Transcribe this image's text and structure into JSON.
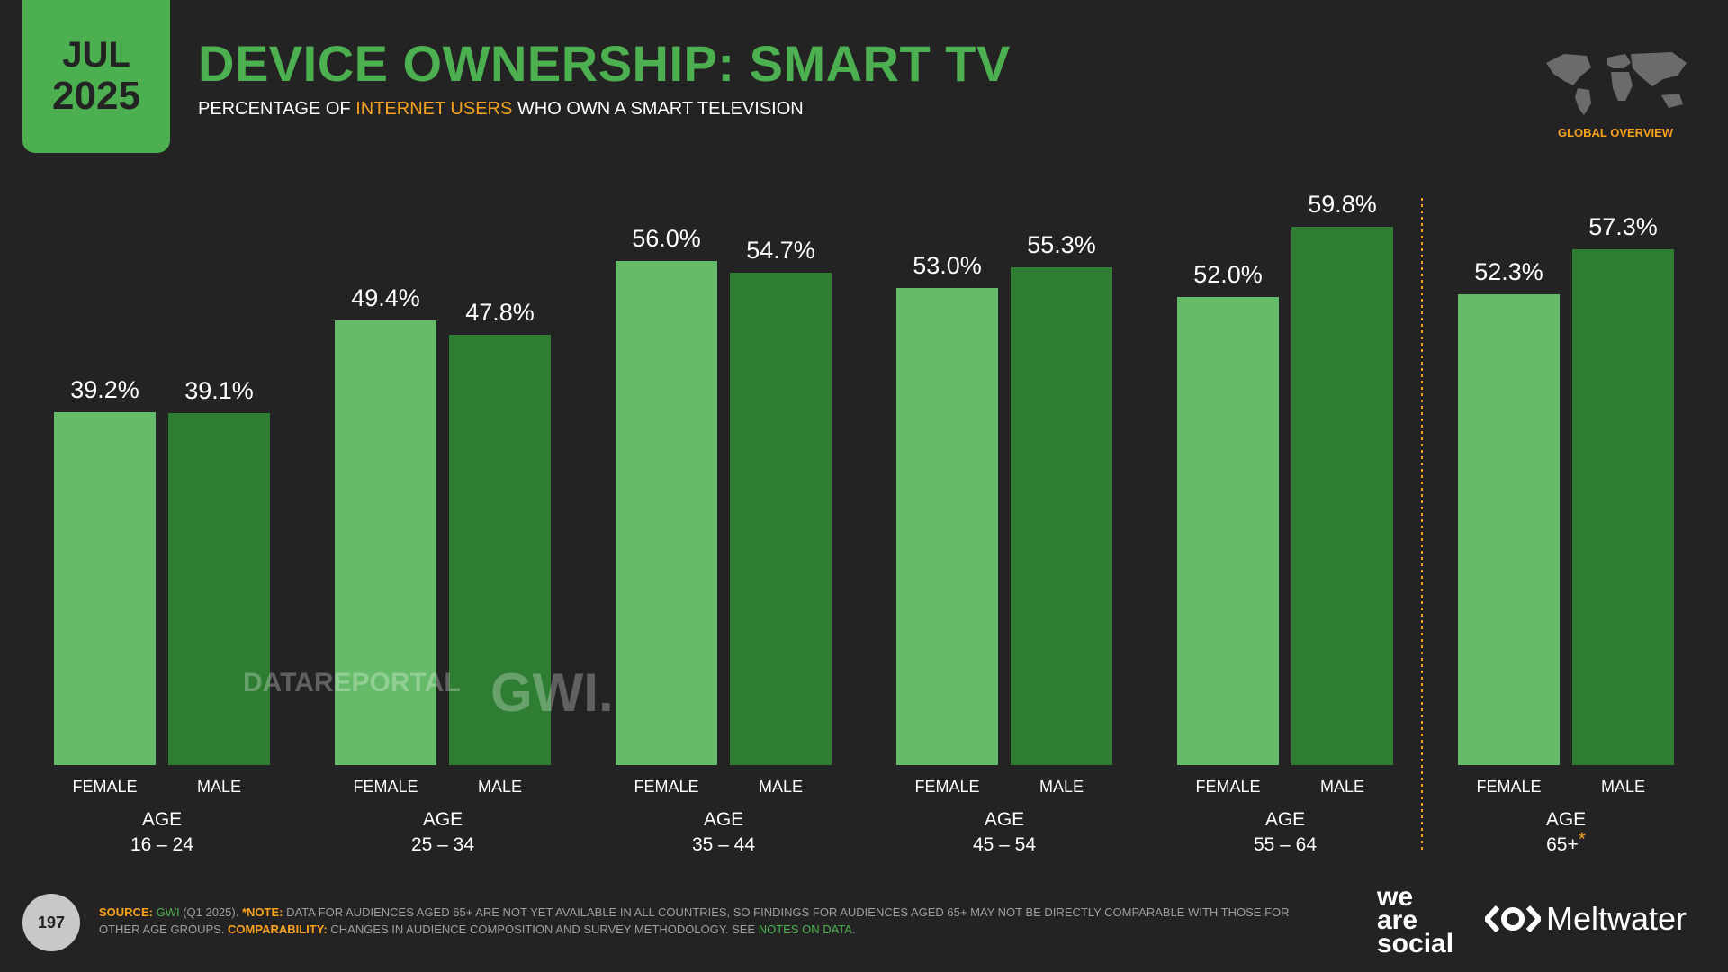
{
  "header": {
    "month": "JUL",
    "year": "2025",
    "title": "DEVICE OWNERSHIP: SMART TV",
    "subtitle_pre": "PERCENTAGE OF ",
    "subtitle_highlight": "INTERNET USERS",
    "subtitle_post": " WHO OWN A SMART TELEVISION",
    "section_label": "GLOBAL OVERVIEW"
  },
  "watermark": {
    "datareportal": "DATAREPORTAL",
    "gwi": "GWI."
  },
  "colors": {
    "female": "#66bb6a",
    "male": "#2e7d32",
    "accent": "#4caf50",
    "highlight": "#f7a21b",
    "background": "#232323"
  },
  "chart_data": {
    "type": "bar",
    "title": "DEVICE OWNERSHIP: SMART TV",
    "ylim": [
      0,
      65
    ],
    "categories": [
      "16 – 24",
      "25 – 34",
      "35 – 44",
      "45 – 54",
      "55 – 64",
      "65+"
    ],
    "category_prefix": "AGE",
    "footnote_marker": "*",
    "series": [
      {
        "name": "FEMALE",
        "values": [
          39.2,
          49.4,
          56.0,
          53.0,
          52.0,
          52.3
        ],
        "labels": [
          "39.2%",
          "49.4%",
          "56.0%",
          "53.0%",
          "52.0%",
          "52.3%"
        ]
      },
      {
        "name": "MALE",
        "values": [
          39.1,
          47.8,
          54.7,
          55.3,
          59.8,
          57.3
        ],
        "labels": [
          "39.1%",
          "47.8%",
          "54.7%",
          "55.3%",
          "59.8%",
          "57.3%"
        ]
      }
    ]
  },
  "footer": {
    "page_number": "197",
    "source_label": "SOURCE:",
    "source_gwi": "GWI",
    "source_period": " (Q1 2025). ",
    "note_label": "*NOTE:",
    "note_text": " DATA FOR AUDIENCES AGED 65+ ARE NOT YET AVAILABLE IN ALL COUNTRIES, SO FINDINGS FOR AUDIENCES AGED 65+ MAY NOT BE DIRECTLY COMPARABLE WITH THOSE FOR OTHER AGE GROUPS. ",
    "comparability_label": "COMPARABILITY:",
    "comparability_text": " CHANGES IN AUDIENCE COMPOSITION AND SURVEY METHODOLOGY. SEE ",
    "notes_link": "NOTES ON DATA",
    "period_end": ".",
    "brand_was_1": "we",
    "brand_was_2": "are",
    "brand_was_3": "social",
    "brand_meltwater": "Meltwater"
  }
}
